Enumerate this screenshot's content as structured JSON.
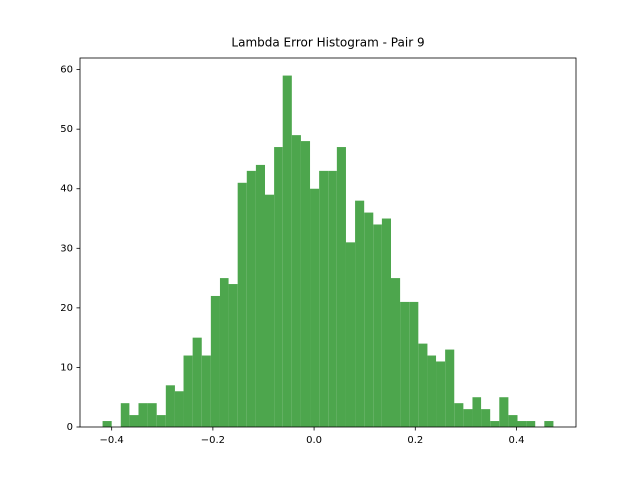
{
  "chart_data": {
    "type": "histogram",
    "title": "Lambda Error Histogram - Pair 9",
    "bins": [
      -0.418,
      -0.4,
      -0.382,
      -0.365,
      -0.347,
      -0.329,
      -0.311,
      -0.293,
      -0.275,
      -0.258,
      -0.24,
      -0.222,
      -0.204,
      -0.186,
      -0.169,
      -0.151,
      -0.133,
      -0.115,
      -0.097,
      -0.079,
      -0.062,
      -0.044,
      -0.026,
      -0.008,
      0.01,
      0.028,
      0.045,
      0.063,
      0.081,
      0.099,
      0.117,
      0.134,
      0.152,
      0.17,
      0.188,
      0.206,
      0.224,
      0.241,
      0.259,
      0.277,
      0.295,
      0.313,
      0.33,
      0.348,
      0.366,
      0.384,
      0.402,
      0.42,
      0.437,
      0.455,
      0.473
    ],
    "counts": [
      1,
      0,
      4,
      2,
      4,
      4,
      2,
      7,
      6,
      12,
      15,
      12,
      22,
      25,
      24,
      41,
      43,
      44,
      39,
      47,
      59,
      49,
      48,
      40,
      43,
      43,
      47,
      31,
      38,
      36,
      34,
      35,
      25,
      21,
      21,
      14,
      12,
      11,
      13,
      4,
      3,
      5,
      3,
      1,
      5,
      2,
      1,
      1,
      0,
      1
    ],
    "color": "#4da64d",
    "xlim": [
      -0.4626,
      0.5176
    ],
    "xticks": [
      {
        "value": -0.4,
        "label": "−0.4"
      },
      {
        "value": -0.2,
        "label": "−0.2"
      },
      {
        "value": 0.0,
        "label": "0.0"
      },
      0.2,
      0.4
    ],
    "ylim": [
      0,
      61.95
    ],
    "yticks": [
      0,
      10,
      20,
      30,
      40,
      50,
      60
    ]
  }
}
